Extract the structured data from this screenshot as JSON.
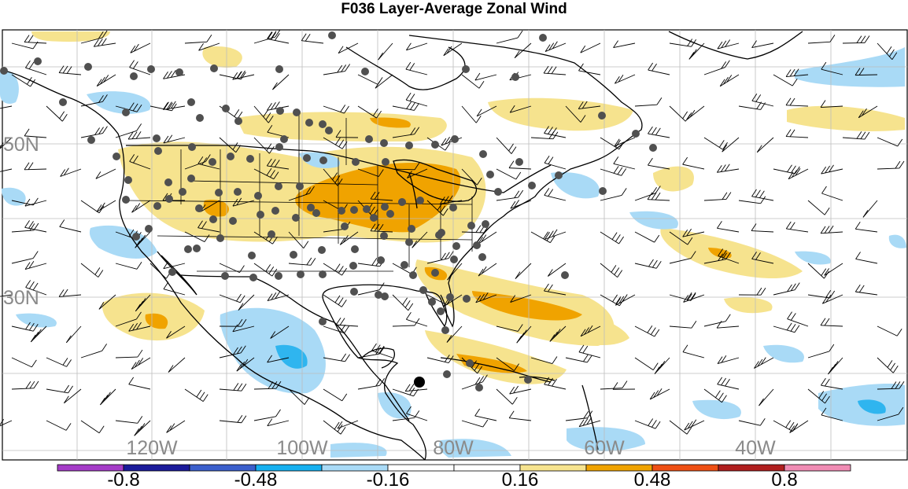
{
  "title": "F036 Layer-Average Zonal Wind",
  "map": {
    "lon_labels": [
      "120W",
      "100W",
      "80W",
      "60W",
      "40W"
    ],
    "lat_labels": [
      "50N",
      "30N"
    ],
    "colors": {
      "light_yellow": "#f6e38e",
      "orange": "#f0a300",
      "light_blue": "#a9daf6",
      "blue": "#2fb5ef",
      "coast": "#000000",
      "grid": "#bdbdbd",
      "station": "#505050"
    }
  },
  "colorbar": {
    "colors": [
      "#a53cc8",
      "#1a1a9a",
      "#3b5fcc",
      "#16b0f0",
      "#a9daf6",
      "#ffffff",
      "#ffffff",
      "#f6e38e",
      "#f0a300",
      "#ee4f14",
      "#b01f1f",
      "#f08cb4"
    ],
    "labels": [
      "-0.8",
      "-0.48",
      "-0.16",
      "0.16",
      "0.48",
      "0.8"
    ]
  }
}
